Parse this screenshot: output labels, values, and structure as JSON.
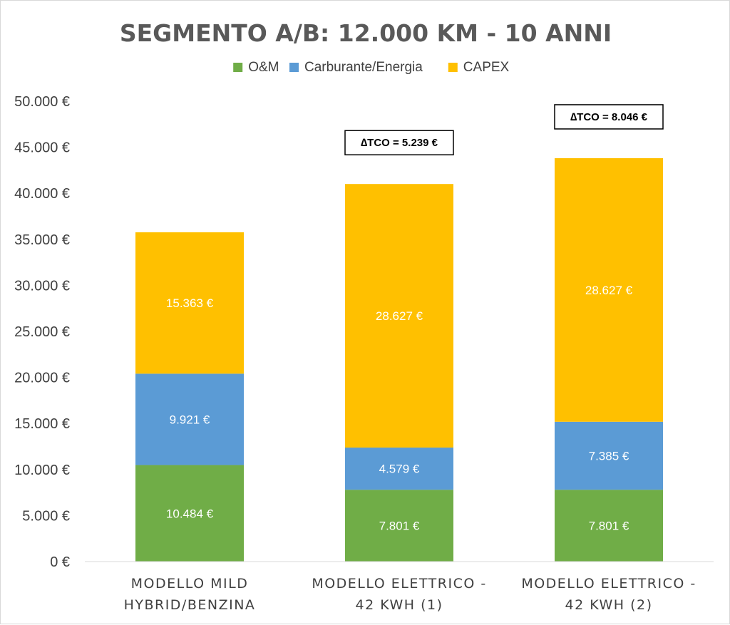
{
  "chart_data": {
    "type": "bar",
    "stacked": true,
    "title": "SEGMENTO A/B: 12.000 KM - 10 ANNI",
    "categories": [
      [
        "MODELLO MILD",
        "HYBRID/BENZINA"
      ],
      [
        "MODELLO ELETTRICO -",
        "42 KWH (1)"
      ],
      [
        "MODELLO ELETTRICO -",
        "42 KWH (2)"
      ]
    ],
    "series": [
      {
        "name": "O&M",
        "color": "#70ad47",
        "values": [
          10484,
          7801,
          7801
        ],
        "labels": [
          "10.484 €",
          "7.801 €",
          "7.801 €"
        ]
      },
      {
        "name": "Carburante/Energia",
        "color": "#5b9bd5",
        "values": [
          9921,
          4579,
          7385
        ],
        "labels": [
          "9.921 €",
          "4.579 €",
          "7.385 €"
        ]
      },
      {
        "name": "CAPEX",
        "color": "#ffc000",
        "values": [
          15363,
          28627,
          28627
        ],
        "labels": [
          "15.363 €",
          "28.627 €",
          "28.627 €"
        ]
      }
    ],
    "ylim": [
      0,
      50000
    ],
    "yticks": [
      0,
      5000,
      10000,
      15000,
      20000,
      25000,
      30000,
      35000,
      40000,
      45000,
      50000
    ],
    "ytick_labels": [
      "0 €",
      "5.000 €",
      "10.000 €",
      "15.000 €",
      "20.000 €",
      "25.000 €",
      "30.000 €",
      "35.000 €",
      "40.000 €",
      "45.000 €",
      "50.000 €"
    ],
    "legend_position": "top",
    "grid": false,
    "annotations": [
      {
        "category_index": 1,
        "text": "∆TCO = 5.239 €"
      },
      {
        "category_index": 2,
        "text": "∆TCO = 8.046 €"
      }
    ]
  }
}
